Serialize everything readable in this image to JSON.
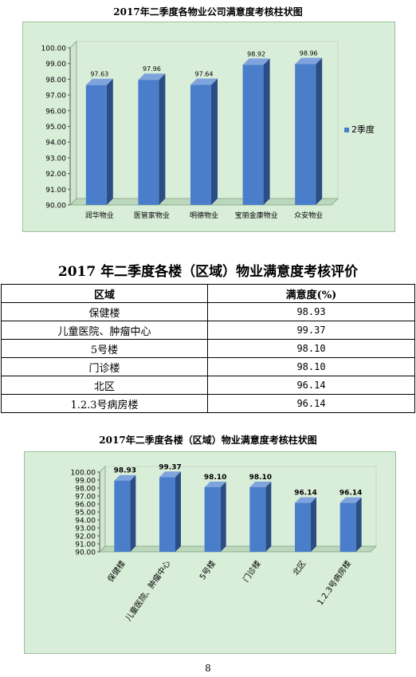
{
  "chart1": {
    "chart_data": {
      "type": "bar",
      "title": "2017年二季度各物业公司满意度考核柱状图",
      "categories": [
        "润华物业",
        "医管家物业",
        "明德物业",
        "宝丽金康物业",
        "众安物业"
      ],
      "series": [
        {
          "name": "2季度",
          "values": [
            97.63,
            97.96,
            97.64,
            98.92,
            98.96
          ]
        }
      ],
      "data_labels": [
        "97.63",
        "97.96",
        "97.64",
        "98.92",
        "98.96"
      ],
      "ylim": [
        90,
        100
      ],
      "yticks": [
        "90.00",
        "91.00",
        "92.00",
        "93.00",
        "94.00",
        "95.00",
        "96.00",
        "97.00",
        "98.00",
        "99.00",
        "100.00"
      ],
      "legend": "right",
      "bar_color": "#4a7ecb",
      "background": "#d9eed9"
    }
  },
  "table_section": {
    "title": "2017 年二季度各楼（区域）物业满意度考核评价",
    "headers": [
      "区域",
      "满意度(%)"
    ],
    "rows": [
      [
        "保健楼",
        "98.93"
      ],
      [
        "儿童医院、肿瘤中心",
        "99.37"
      ],
      [
        "5号楼",
        "98.10"
      ],
      [
        "门诊楼",
        "98.10"
      ],
      [
        "北区",
        "96.14"
      ],
      [
        "1.2.3号病房楼",
        "96.14"
      ]
    ]
  },
  "chart2": {
    "chart_data": {
      "type": "bar",
      "title": "2017年二季度各楼（区域）物业满意度考核柱状图",
      "categories": [
        "保健楼",
        "儿童医院、肿瘤中心",
        "5号楼",
        "门诊楼",
        "北区",
        "1.2.3号病房楼"
      ],
      "values": [
        98.93,
        99.37,
        98.1,
        98.1,
        96.14,
        96.14
      ],
      "data_labels": [
        "98.93",
        "99.37",
        "98.10",
        "98.10",
        "96.14",
        "96.14"
      ],
      "ylim": [
        90,
        100
      ],
      "yticks": [
        "90.00",
        "91.00",
        "92.00",
        "93.00",
        "94.00",
        "95.00",
        "96.00",
        "97.00",
        "98.00",
        "99.00",
        "100.00"
      ],
      "bar_color": "#4a7ecb",
      "background": "#d9eed9"
    }
  },
  "page_number": "8"
}
